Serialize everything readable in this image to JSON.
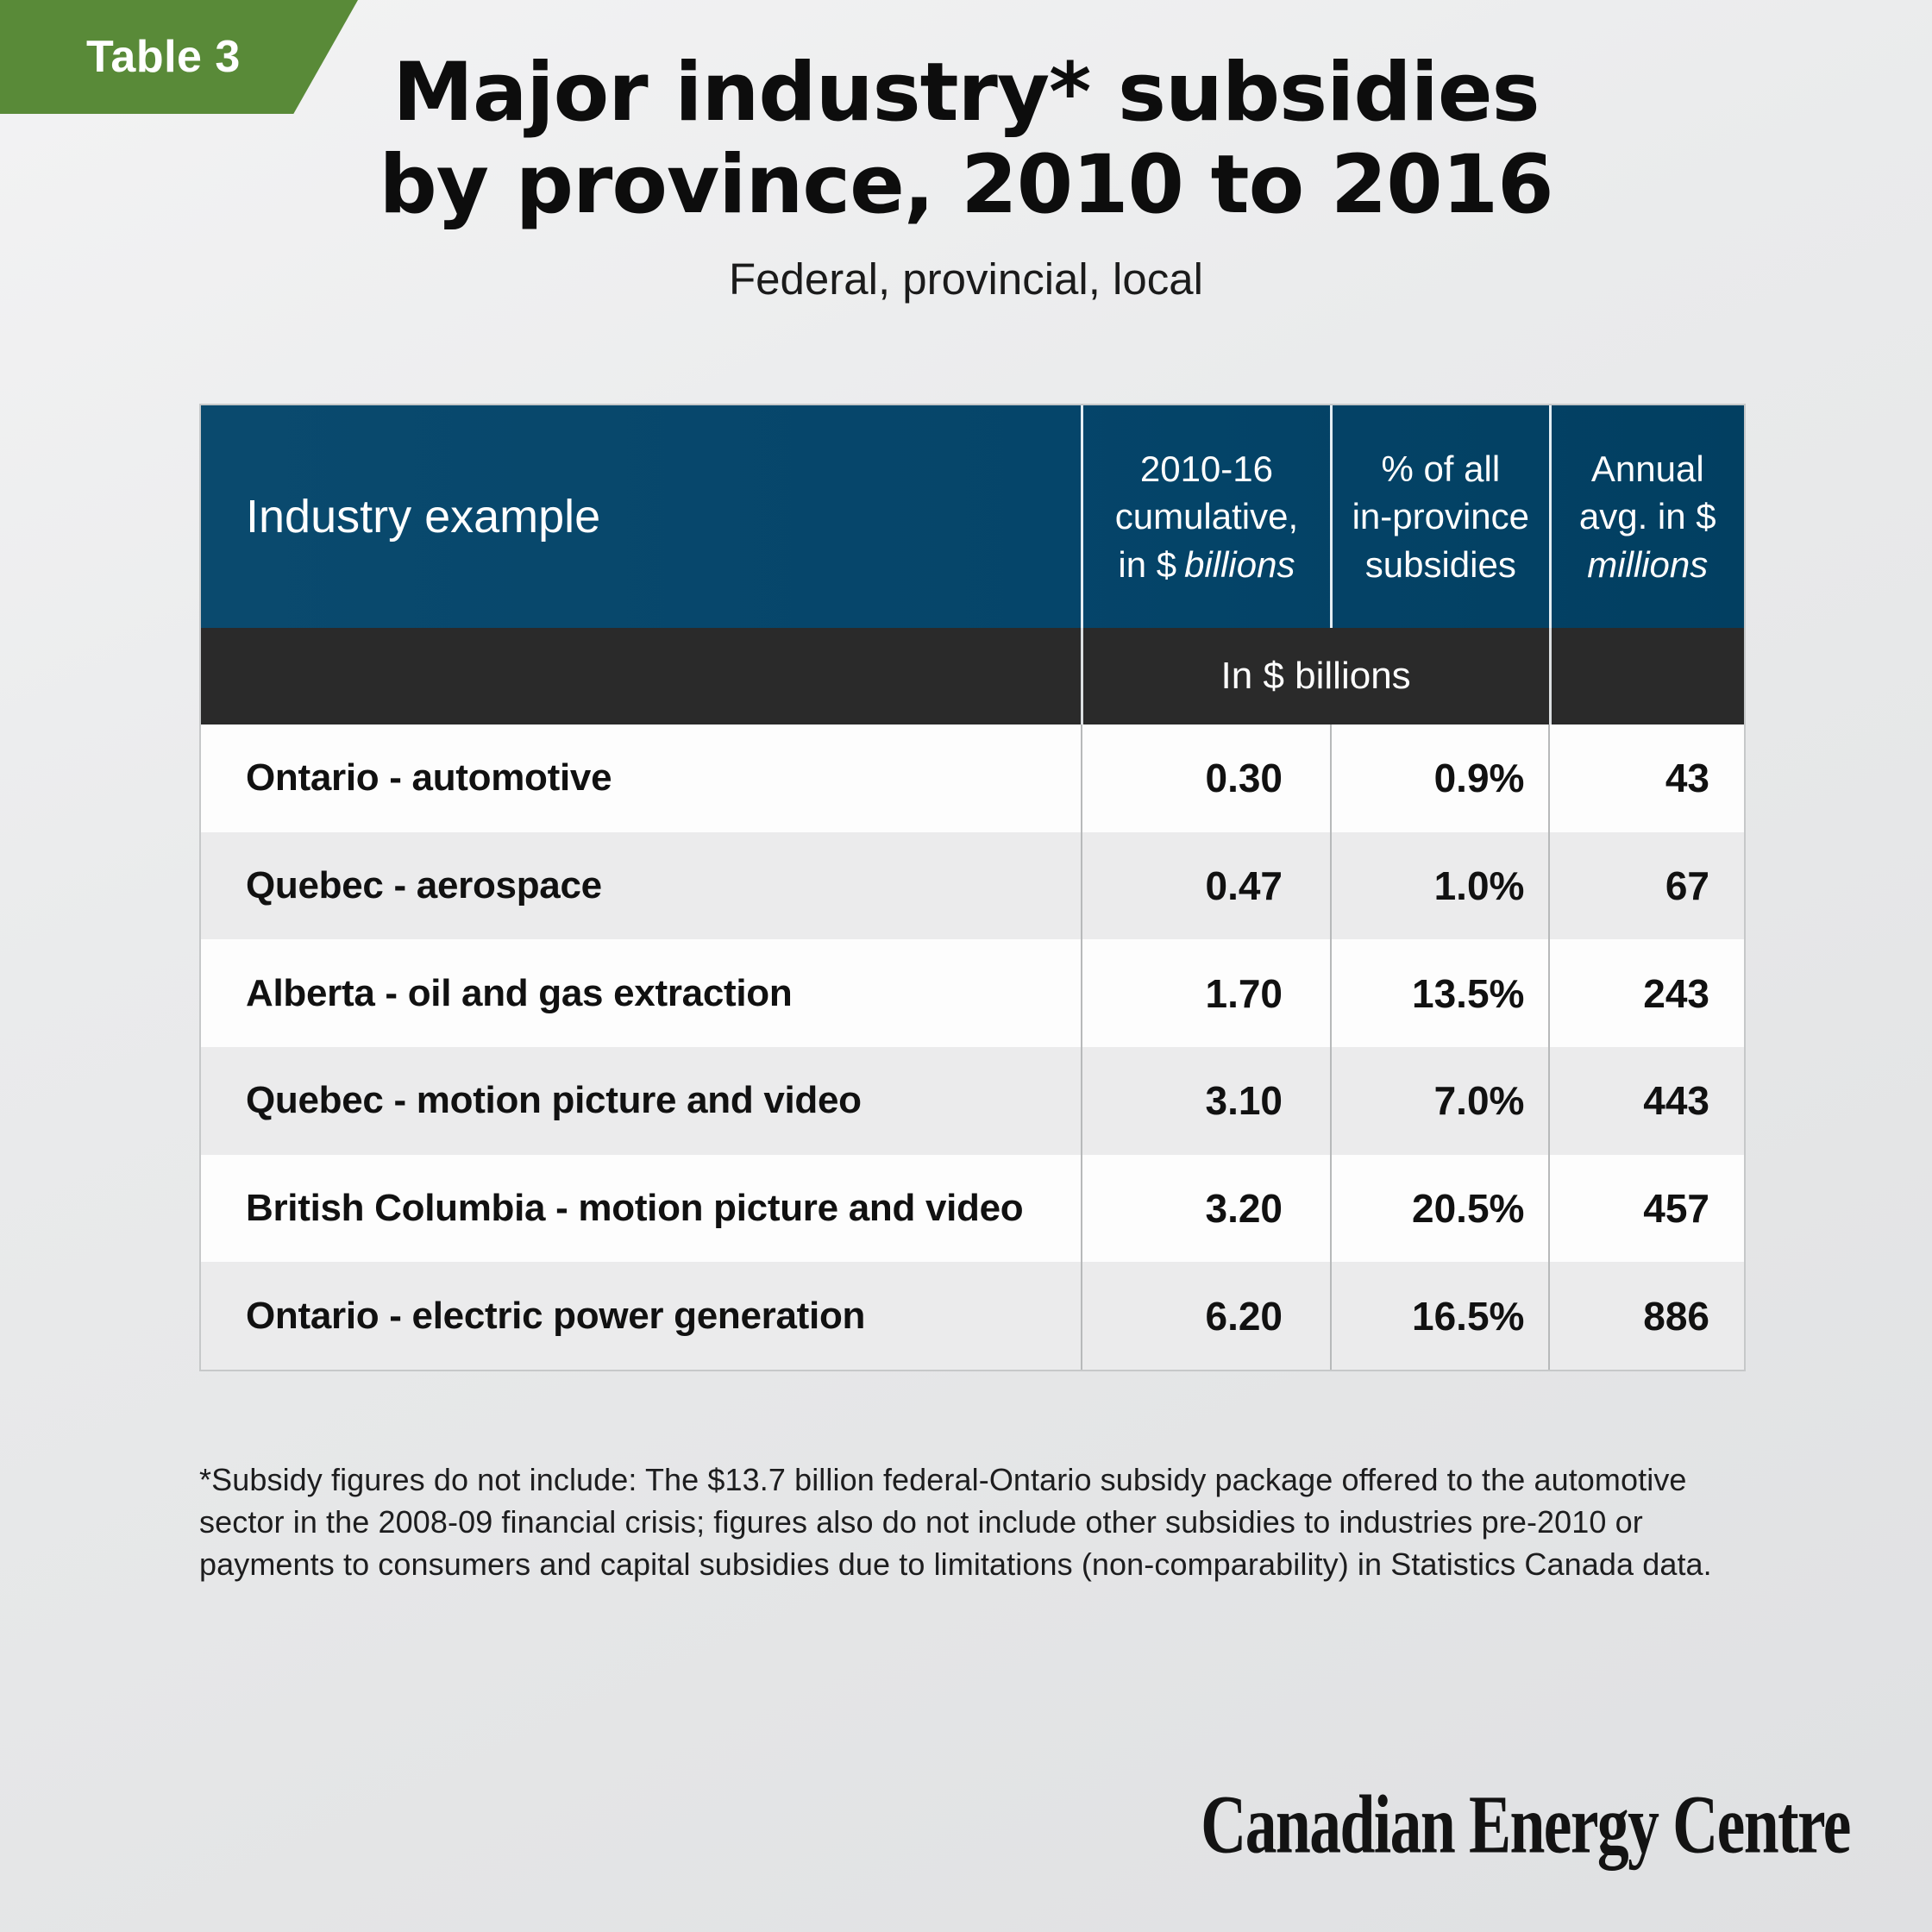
{
  "badge": {
    "label": "Table 3"
  },
  "header": {
    "title_line1": "Major industry* subsidies",
    "title_line2": "by province, 2010 to 2016",
    "subtitle": "Federal, provincial, local"
  },
  "table": {
    "col_industry": "Industry example",
    "col_cumulative": {
      "l1": "2010-16",
      "l2": "cumulative,",
      "l3": "in $",
      "l3_italic": "billions"
    },
    "col_share": {
      "l1": "% of all",
      "l2": "in-province",
      "l3": "subsidies"
    },
    "col_annual": {
      "l1": "Annual",
      "l2": "avg. in $",
      "l3_italic": "millions"
    },
    "band_label": "In $ billions",
    "rows": [
      {
        "label": "Ontario - automotive",
        "cumulative": "0.30",
        "share": "0.9%",
        "annual": "43"
      },
      {
        "label": "Quebec - aerospace",
        "cumulative": "0.47",
        "share": "1.0%",
        "annual": "67"
      },
      {
        "label": "Alberta - oil and gas extraction",
        "cumulative": "1.70",
        "share": "13.5%",
        "annual": "243"
      },
      {
        "label": "Quebec - motion picture and video",
        "cumulative": "3.10",
        "share": "7.0%",
        "annual": "443"
      },
      {
        "label": "British Columbia - motion picture and video",
        "cumulative": "3.20",
        "share": "20.5%",
        "annual": "457"
      },
      {
        "label": "Ontario - electric power generation",
        "cumulative": "6.20",
        "share": "16.5%",
        "annual": "886"
      }
    ]
  },
  "footnote": {
    "line1": "*Subsidy figures do not include: The $13.7 billion federal-Ontario subsidy package offered to the automotive",
    "line2": "sector in the 2008-09 financial crisis; figures also do not include other subsidies to industries pre-2010 or",
    "line3": "payments to consumers and capital subsidies due to limitations (non-comparability) in Statistics Canada data."
  },
  "logo": {
    "text": "Canadian Energy Centre"
  },
  "colors": {
    "badge_green": "#598a38",
    "header_blue": "#05486b",
    "band_dark": "#2a2a2a",
    "row_alt_gray": "#ebebec",
    "page_bg": "#e9eaeb",
    "text_dark": "#111111",
    "text_white": "#ffffff"
  },
  "chart_data": {
    "type": "table",
    "title": "Major industry* subsidies by province, 2010 to 2016",
    "subtitle": "Federal, provincial, local",
    "columns": [
      "Industry example",
      "2010-16 cumulative, in $ billions",
      "% of all in-province subsidies",
      "Annual avg. in $ millions"
    ],
    "unit_band": "In $ billions",
    "rows": [
      [
        "Ontario - automotive",
        0.3,
        "0.9%",
        43
      ],
      [
        "Quebec - aerospace",
        0.47,
        "1.0%",
        67
      ],
      [
        "Alberta - oil and gas extraction",
        1.7,
        "13.5%",
        243
      ],
      [
        "Quebec - motion picture and video",
        3.1,
        "7.0%",
        443
      ],
      [
        "British Columbia - motion picture and video",
        3.2,
        "20.5%",
        457
      ],
      [
        "Ontario - electric power generation",
        6.2,
        "16.5%",
        886
      ]
    ],
    "source_note": "*Subsidy figures do not include: The $13.7 billion federal-Ontario subsidy package offered to the automotive sector in the 2008-09 financial crisis; figures also do not include other subsidies to industries pre-2010 or payments to consumers and capital subsidies due to limitations (non-comparability) in Statistics Canada data."
  }
}
